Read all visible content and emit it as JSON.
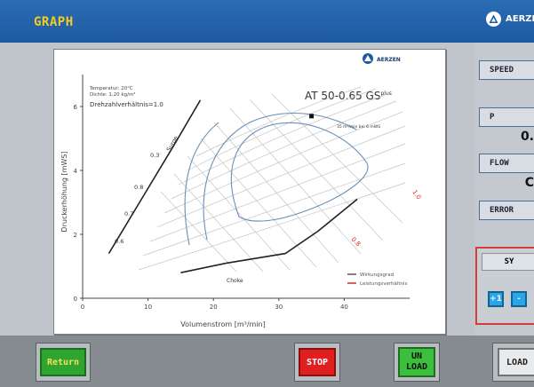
{
  "window": {
    "title": "GRAPH",
    "brand_text": "AERZE",
    "brand_icon": "aerzen-logo-icon"
  },
  "chart": {
    "logo_text": "AERZEN",
    "model_title": "AT 50-0.65 GS",
    "model_sup": "plus",
    "conditions": [
      "Temperatur: 20°C",
      "Dichte: 1,20 kg/m³"
    ],
    "speed_ratio": "Drehzahlverhältnis=1.0",
    "marker_note": "35 m³/min bei 6 mWS",
    "surge_label": "Surge",
    "choke_label": "Choke",
    "leistung_labels": [
      "0.3",
      "0.6",
      "0.7",
      "0.8",
      "0.9"
    ],
    "wirkung_labels": [
      "1.0",
      "0.8"
    ],
    "legend": [
      "Wirkungsgrad",
      "Leistungsverhältnis"
    ],
    "colors": {
      "wirkung": "#555555",
      "leistung": "#d62828",
      "contour": "#6b8fb8"
    }
  },
  "chart_data": {
    "type": "line",
    "xlabel": "Volumenstrom [m³/min]",
    "ylabel": "Druckerhöhung [mWS]",
    "xlim": [
      0,
      50
    ],
    "ylim": [
      0,
      7
    ],
    "x_ticks": [
      "0",
      "10",
      "20",
      "30",
      "40"
    ],
    "y_ticks": [
      "0",
      "2",
      "4",
      "6"
    ],
    "series": [
      {
        "name": "Surge",
        "x": [
          4,
          9,
          14,
          18
        ],
        "y": [
          1.4,
          3.1,
          4.8,
          6.2
        ]
      },
      {
        "name": "Choke",
        "x": [
          15,
          22,
          31,
          36,
          42
        ],
        "y": [
          0.8,
          1.1,
          1.4,
          2.1,
          3.1
        ]
      }
    ],
    "point": {
      "x": 35,
      "y": 5.7
    }
  },
  "panel": {
    "speed_label": "SPEED",
    "p_label": "P",
    "p_value": "0.",
    "flow_label": "FLOW",
    "flow_value": "C",
    "error_label": "ERROR",
    "sy_label": "SY",
    "mini_buttons": [
      "+1",
      "-"
    ]
  },
  "buttons": {
    "return": "Return",
    "stop": "STOP",
    "unload": "UN\nLOAD",
    "load": "LOAD"
  }
}
